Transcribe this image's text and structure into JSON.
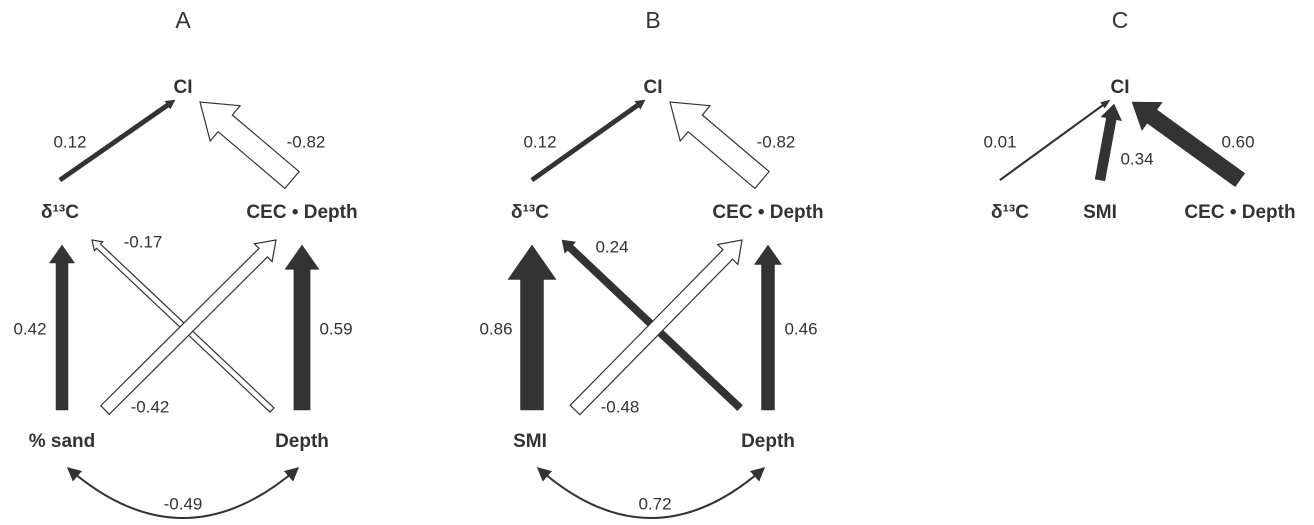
{
  "panels": [
    {
      "label": "A",
      "nodes": [
        {
          "label": "CI"
        },
        {
          "label": "δ¹³C"
        },
        {
          "label": "CEC • Depth"
        },
        {
          "label": "% sand"
        },
        {
          "label": "Depth"
        }
      ],
      "edges": [
        {
          "value": 0.12
        },
        {
          "value": -0.82
        },
        {
          "value": 0.42
        },
        {
          "value": 0.59
        },
        {
          "value": -0.17
        },
        {
          "value": -0.42
        }
      ],
      "correlation": {
        "value": -0.49
      }
    },
    {
      "label": "B",
      "nodes": [
        {
          "label": "CI"
        },
        {
          "label": "δ¹³C"
        },
        {
          "label": "CEC • Depth"
        },
        {
          "label": "SMI"
        },
        {
          "label": "Depth"
        }
      ],
      "edges": [
        {
          "value": 0.12
        },
        {
          "value": -0.82
        },
        {
          "value": 0.86
        },
        {
          "value": 0.46
        },
        {
          "value": 0.24
        },
        {
          "value": -0.48
        }
      ],
      "correlation": {
        "value": 0.72
      }
    },
    {
      "label": "C",
      "nodes": [
        {
          "label": "CI"
        },
        {
          "label": "δ¹³C"
        },
        {
          "label": "SMI"
        },
        {
          "label": "CEC • Depth"
        }
      ],
      "edges": [
        {
          "value": 0.01
        },
        {
          "value": 0.34
        },
        {
          "value": {
            "value": 0.6,
            "label": "0.60"
          }
        }
      ]
    }
  ]
}
